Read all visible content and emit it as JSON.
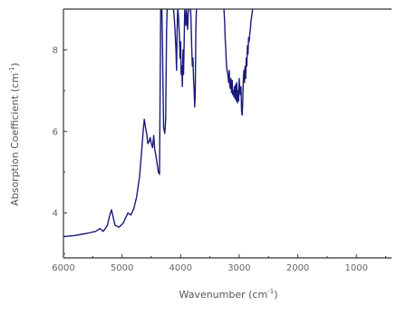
{
  "chart_data": {
    "type": "line",
    "title": "",
    "xlabel": "Wavenumber (cm-1)",
    "xlabel_parts": {
      "pre": "Wavenumber (cm",
      "sup": "-1",
      "post": ")"
    },
    "ylabel": "Absorption Coefficient (cm-1)",
    "ylabel_parts": {
      "pre": "Absorption Coefficient (cm",
      "sup": "-1",
      "post": ")"
    },
    "x_reversed": true,
    "xlim": [
      6000,
      400
    ],
    "ylim": [
      2.9,
      9.0
    ],
    "x_ticks": [
      6000,
      5000,
      4000,
      3000,
      2000,
      1000
    ],
    "x_tick_labels": [
      "6000",
      "5000",
      "4000",
      "3000",
      "2000",
      "1000"
    ],
    "y_ticks": [
      4,
      6,
      8
    ],
    "y_tick_labels": [
      "4",
      "6",
      "8"
    ],
    "grid": false,
    "line_color": "#1a1a7a",
    "axis_color": "#333333",
    "series": [
      {
        "x": [
          6000,
          5800,
          5600,
          5450,
          5380,
          5320,
          5250,
          5210,
          5180,
          5160,
          5120,
          5050,
          4980,
          4900,
          4850,
          4800,
          4750,
          4700,
          4660,
          4640,
          4620,
          4600,
          4580,
          4560,
          4540,
          4520,
          4500,
          4480,
          4460,
          4440,
          4420,
          4400,
          4380,
          4360,
          4340,
          4330,
          4320,
          4310,
          4300,
          4290,
          4270,
          4255,
          4240,
          4230,
          4220,
          4180,
          4120,
          4100,
          4080,
          4070,
          4060,
          4050,
          4040,
          4020,
          4010,
          4000,
          3990,
          3980,
          3970,
          3960,
          3950,
          3940,
          3930,
          3920,
          3910,
          3900,
          3890,
          3880,
          3870,
          3860,
          3850,
          3840,
          3830,
          3820,
          3810,
          3800,
          3790,
          3780,
          3770,
          3760,
          3750,
          3740,
          3730
        ],
        "y": [
          3.42,
          3.45,
          3.5,
          3.55,
          3.62,
          3.55,
          3.7,
          3.95,
          4.08,
          3.95,
          3.7,
          3.65,
          3.75,
          4.0,
          3.95,
          4.1,
          4.4,
          4.9,
          5.6,
          6.0,
          6.3,
          6.1,
          5.95,
          5.7,
          5.75,
          5.85,
          5.7,
          5.6,
          5.9,
          5.55,
          5.4,
          5.2,
          5.0,
          4.95,
          9.0,
          9.0,
          9.0,
          8.2,
          7.0,
          6.1,
          5.95,
          6.3,
          8.5,
          9.0,
          9.0,
          9.0,
          9.0,
          8.6,
          8.0,
          7.5,
          8.5,
          9.0,
          8.9,
          8.3,
          7.8,
          8.2,
          7.4,
          7.6,
          7.1,
          8.0,
          7.4,
          8.2,
          9.0,
          8.8,
          8.6,
          9.0,
          8.7,
          8.5,
          8.9,
          9.0,
          9.0,
          9.0,
          9.0,
          8.6,
          8.0,
          7.6,
          7.8,
          7.3,
          7.0,
          6.6,
          6.9,
          8.5,
          9.0
        ]
      },
      {
        "x": [
          3260,
          3250,
          3240,
          3230,
          3220,
          3210,
          3200,
          3190,
          3180,
          3170,
          3160,
          3150,
          3140,
          3130,
          3120,
          3110,
          3100,
          3090,
          3080,
          3070,
          3060,
          3050,
          3040,
          3030,
          3020,
          3010,
          3000,
          2990,
          2980,
          2970,
          2960,
          2950,
          2940,
          2930,
          2920,
          2910,
          2900,
          2890,
          2880,
          2870,
          2860,
          2850,
          2840,
          2830,
          2820,
          2810,
          2800,
          2790,
          2780,
          2770
        ],
        "y": [
          9.0,
          8.7,
          8.3,
          8.0,
          7.7,
          7.5,
          7.45,
          7.35,
          7.2,
          7.5,
          7.1,
          7.05,
          7.3,
          6.95,
          7.25,
          6.9,
          7.0,
          6.85,
          7.1,
          6.8,
          7.15,
          6.75,
          7.2,
          6.7,
          7.0,
          6.75,
          7.3,
          7.0,
          6.9,
          7.1,
          6.5,
          6.4,
          6.7,
          7.3,
          7.5,
          7.2,
          7.6,
          7.3,
          7.8,
          7.6,
          8.1,
          7.9,
          8.3,
          8.2,
          8.4,
          8.5,
          8.7,
          8.8,
          8.9,
          9.0
        ]
      }
    ]
  }
}
